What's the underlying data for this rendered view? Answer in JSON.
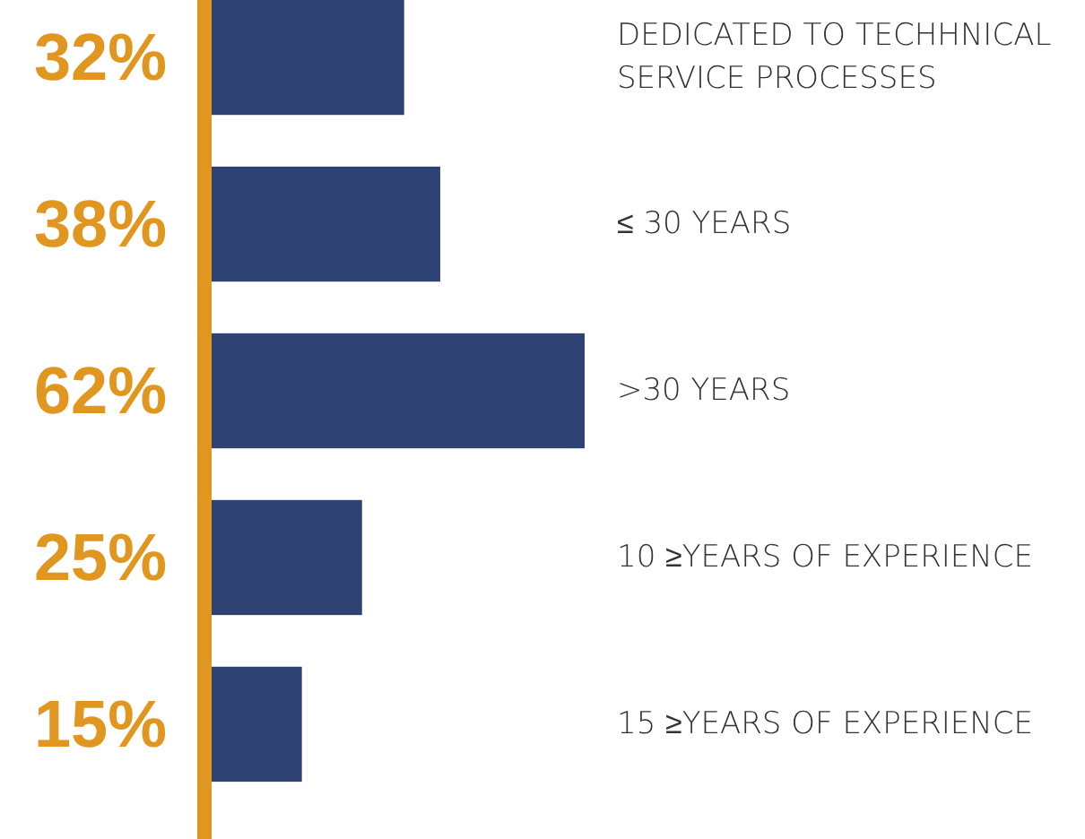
{
  "chart_data": {
    "type": "bar",
    "orientation": "horizontal",
    "categories": [
      "DEDICATED TO TECHHNICAL SERVICE PROCESSES",
      "≤ 30 YEARS",
      ">30 YEARS",
      "10 ≥YEARS OF EXPERIENCE",
      "15 ≥YEARS OF EXPERIENCE"
    ],
    "values": [
      32,
      38,
      62,
      25,
      15
    ],
    "value_labels": [
      "32%",
      "38%",
      "62%",
      "25%",
      "15%"
    ],
    "color": "#2f4274"
  }
}
